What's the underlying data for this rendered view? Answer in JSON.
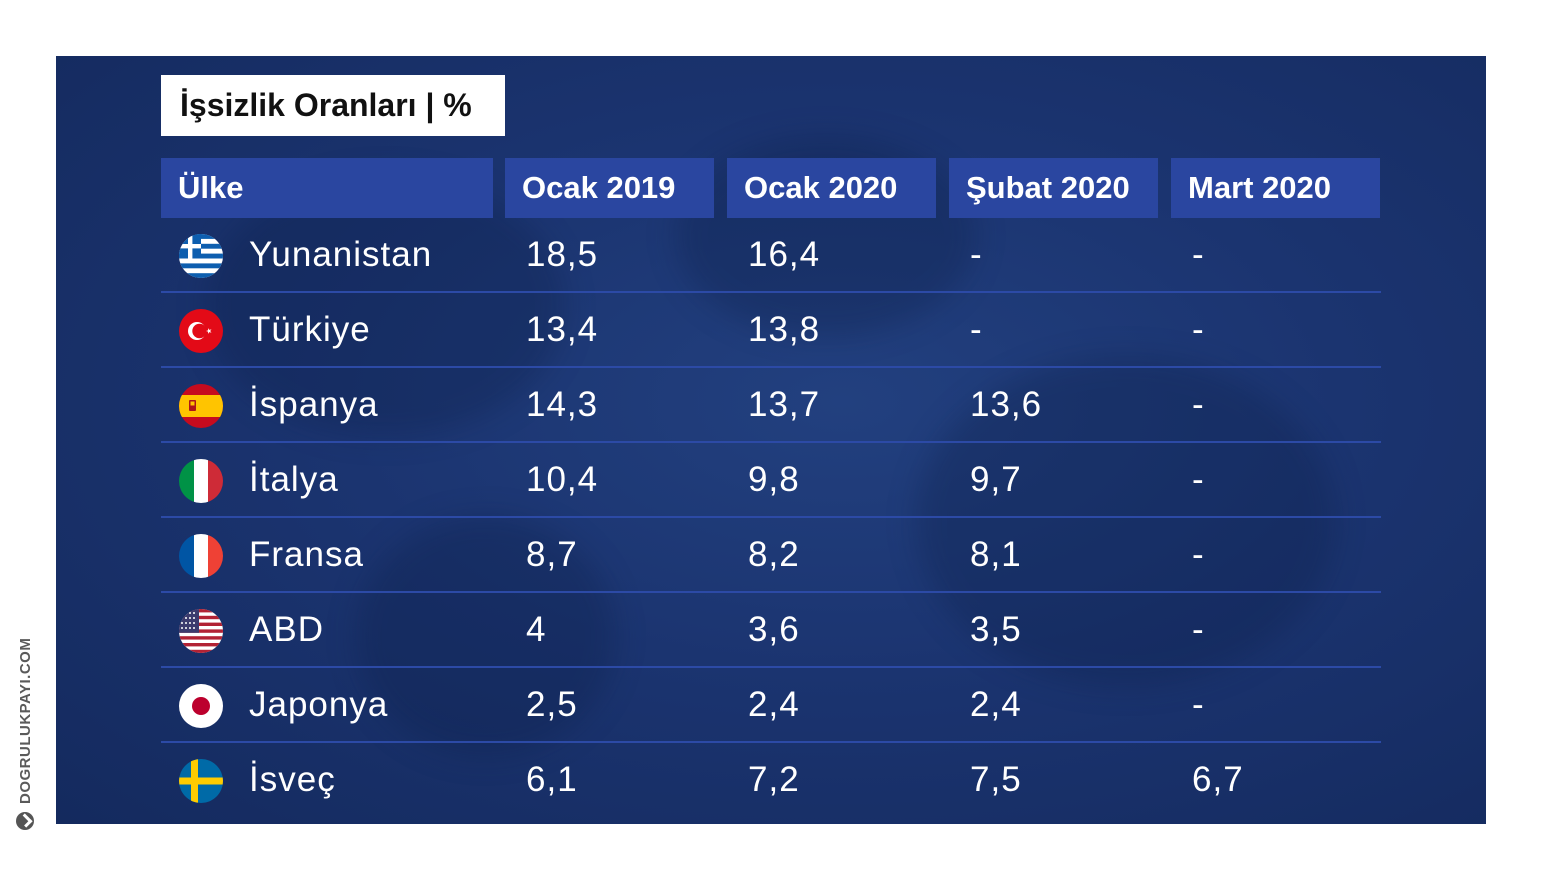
{
  "chart_data": {
    "type": "table",
    "title": "İşsizlik Oranları | %",
    "columns": [
      "Ülke",
      "Ocak 2019",
      "Ocak 2020",
      "Şubat 2020",
      "Mart 2020"
    ],
    "rows": [
      {
        "country": "Yunanistan",
        "flag": "greece-flag-icon",
        "values": [
          "18,5",
          "16,4",
          "-",
          "-"
        ]
      },
      {
        "country": "Türkiye",
        "flag": "turkey-flag-icon",
        "values": [
          "13,4",
          "13,8",
          "-",
          "-"
        ]
      },
      {
        "country": "İspanya",
        "flag": "spain-flag-icon",
        "values": [
          "14,3",
          "13,7",
          "13,6",
          "-"
        ]
      },
      {
        "country": "İtalya",
        "flag": "italy-flag-icon",
        "values": [
          "10,4",
          "9,8",
          "9,7",
          "-"
        ]
      },
      {
        "country": "Fransa",
        "flag": "france-flag-icon",
        "values": [
          "8,7",
          "8,2",
          "8,1",
          "-"
        ]
      },
      {
        "country": "ABD",
        "flag": "usa-flag-icon",
        "values": [
          "4",
          "3,6",
          "3,5",
          "-"
        ]
      },
      {
        "country": "Japonya",
        "flag": "japan-flag-icon",
        "values": [
          "2,5",
          "2,4",
          "2,4",
          "-"
        ]
      },
      {
        "country": "İsveç",
        "flag": "sweden-flag-icon",
        "values": [
          "6,1",
          "7,2",
          "7,5",
          "6,7"
        ]
      }
    ]
  },
  "credit": "DOGRULUKPAYI.COM",
  "colors": {
    "panel_background": "#1b3470",
    "header_background": "#2a46a0",
    "row_separator": "#2c4aa6",
    "title_box": "#ffffff",
    "text": "#ffffff"
  }
}
